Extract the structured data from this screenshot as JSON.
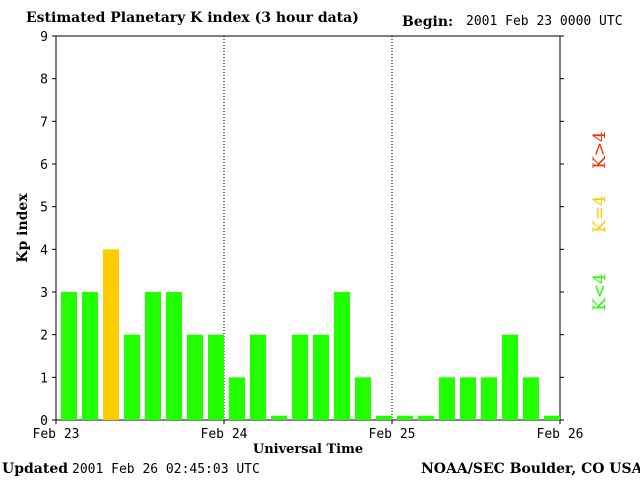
{
  "header": {
    "title": "Estimated Planetary K index (3 hour data)",
    "begin_label": "Begin:",
    "begin_value": "2001 Feb 23 0000 UTC"
  },
  "footer": {
    "updated_label": "Updated",
    "updated_value": "2001 Feb 26 02:45:03 UTC",
    "credit": "NOAA/SEC Boulder, CO USA"
  },
  "legend": {
    "high": {
      "label": "K>4",
      "color": "#ff2a00"
    },
    "mid": {
      "label": "K=4",
      "color": "#ffcc00"
    },
    "low": {
      "label": "K<4",
      "color": "#22ff00"
    }
  },
  "chart_data": {
    "type": "bar",
    "title": "Estimated Planetary K index (3 hour data)",
    "xlabel": "Universal Time",
    "ylabel": "Kp index",
    "ylim": [
      0,
      9
    ],
    "yticks": [
      "0",
      "1",
      "2",
      "3",
      "4",
      "5",
      "6",
      "7",
      "8",
      "9"
    ],
    "xticks": [
      "Feb 23",
      "Feb 24",
      "Feb 25",
      "Feb 26"
    ],
    "day_separators": [
      "Feb 24",
      "Feb 25"
    ],
    "bars_per_day": 8,
    "values": [
      3,
      3,
      4,
      2,
      3,
      3,
      2,
      2,
      1,
      2,
      0.1,
      2,
      2,
      3,
      1,
      0.1,
      0.1,
      0.1,
      1,
      1,
      1,
      2,
      1,
      0.1
    ],
    "colors": {
      "below_4": "#22ff00",
      "equal_4": "#ffcc00",
      "above_4": "#ff2a00"
    }
  }
}
